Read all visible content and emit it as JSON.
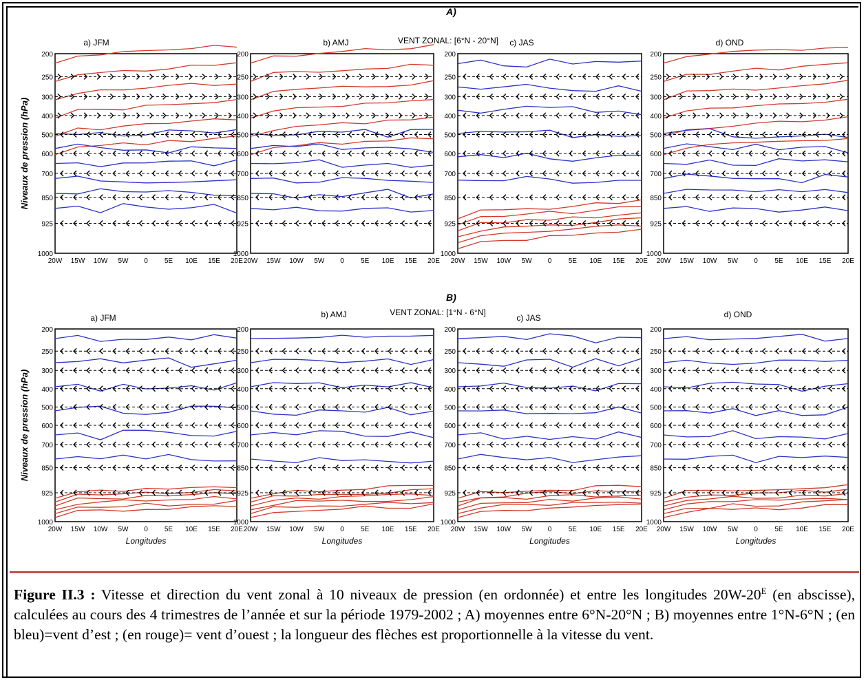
{
  "figure": {
    "blocks": [
      {
        "letter": "A)",
        "header": "VENT ZONAL: [6°N - 20°N]",
        "panels": [
          {
            "label": "a) JFM"
          },
          {
            "label": "b) AMJ"
          },
          {
            "label": "c) JAS"
          },
          {
            "label": "d) OND"
          }
        ]
      },
      {
        "letter": "B)",
        "header": "VENT ZONAL: [1°N - 6°N]",
        "panels": [
          {
            "label": "a) JFM"
          },
          {
            "label": "b) AMJ"
          },
          {
            "label": "c) JAS"
          },
          {
            "label": "d) OND"
          }
        ]
      }
    ],
    "ylabel": "Niveaux de pression (hPa)",
    "xlabel": "Longitudes",
    "pressure_levels": [
      "200",
      "250",
      "300",
      "400",
      "500",
      "600",
      "700",
      "850",
      "925",
      "1000"
    ],
    "longitude_ticks": [
      "20W",
      "15W",
      "10W",
      "5W",
      "0",
      "5E",
      "10E",
      "15E",
      "20E"
    ],
    "colors": {
      "easterly": "#2b33c8",
      "westerly": "#d23a2a",
      "arrows": "#000000",
      "caption_rule": "#c0504d"
    }
  },
  "caption": {
    "label": "Figure II.3 :",
    "text_before_sup": " Vitesse et direction du vent zonal à 10 niveaux de pression (en ordonnée) et entre les longitudes 20W-20",
    "sup": "E",
    "text_after_sup": " (en abscisse), calculées au cours des 4 trimestres de l’année et sur la période 1979-2002 ; A) moyennes entre 6°N-20°N ; B) moyennes entre 1°N-6°N ; (en bleu)=vent d’est ; (en rouge)= vent d’ouest ; la longueur des flèches est proportionnelle à la vitesse du vent."
  }
}
